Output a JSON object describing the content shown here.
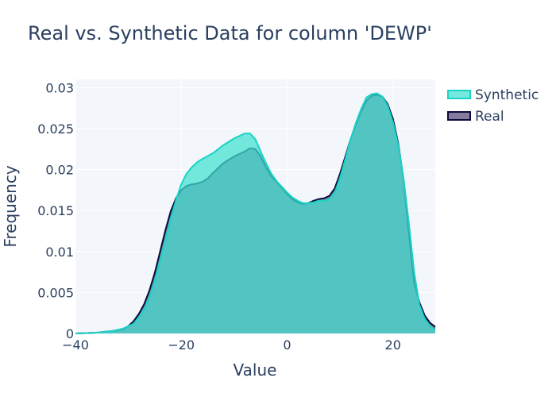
{
  "chart_data": {
    "type": "area",
    "title": "Real vs. Synthetic Data for column 'DEWP'",
    "xlabel": "Value",
    "ylabel": "Frequency",
    "xlim": [
      -40,
      28
    ],
    "ylim": [
      0,
      0.031
    ],
    "x_ticks": [
      {
        "value": -40,
        "label": "−40"
      },
      {
        "value": -20,
        "label": "−20"
      },
      {
        "value": 0,
        "label": "0"
      },
      {
        "value": 20,
        "label": "20"
      }
    ],
    "y_ticks": [
      {
        "value": 0,
        "label": "0"
      },
      {
        "value": 0.005,
        "label": "0.005"
      },
      {
        "value": 0.01,
        "label": "0.01"
      },
      {
        "value": 0.015,
        "label": "0.015"
      },
      {
        "value": 0.02,
        "label": "0.02"
      },
      {
        "value": 0.025,
        "label": "0.025"
      },
      {
        "value": 0.03,
        "label": "0.03"
      }
    ],
    "grid": true,
    "legend_position": "top-right",
    "series": [
      {
        "name": "Synthetic",
        "fill_color": "#40e0d0",
        "line_color": "#19d3c5",
        "points": [
          [
            -40,
            0
          ],
          [
            -36,
            0.0001
          ],
          [
            -33,
            0.0003
          ],
          [
            -31,
            0.0006
          ],
          [
            -29,
            0.0012
          ],
          [
            -28,
            0.002
          ],
          [
            -27,
            0.003
          ],
          [
            -26,
            0.0045
          ],
          [
            -25,
            0.0065
          ],
          [
            -24,
            0.009
          ],
          [
            -23,
            0.0115
          ],
          [
            -22,
            0.014
          ],
          [
            -21,
            0.0163
          ],
          [
            -20,
            0.0182
          ],
          [
            -19,
            0.0195
          ],
          [
            -18,
            0.0203
          ],
          [
            -17,
            0.0209
          ],
          [
            -16,
            0.0213
          ],
          [
            -14,
            0.022
          ],
          [
            -12,
            0.023
          ],
          [
            -10,
            0.0238
          ],
          [
            -8,
            0.0244
          ],
          [
            -7,
            0.0244
          ],
          [
            -6,
            0.0237
          ],
          [
            -5,
            0.0222
          ],
          [
            -4,
            0.0208
          ],
          [
            -3,
            0.0195
          ],
          [
            -2,
            0.0186
          ],
          [
            -1,
            0.0179
          ],
          [
            0,
            0.0172
          ],
          [
            1,
            0.0166
          ],
          [
            2,
            0.0162
          ],
          [
            3,
            0.0159
          ],
          [
            4,
            0.0159
          ],
          [
            5,
            0.016
          ],
          [
            6,
            0.0162
          ],
          [
            7,
            0.0162
          ],
          [
            8,
            0.0164
          ],
          [
            9,
            0.0172
          ],
          [
            10,
            0.019
          ],
          [
            11,
            0.0213
          ],
          [
            12,
            0.0237
          ],
          [
            13,
            0.0257
          ],
          [
            14,
            0.0274
          ],
          [
            15,
            0.0288
          ],
          [
            16,
            0.0292
          ],
          [
            17,
            0.0293
          ],
          [
            18,
            0.0289
          ],
          [
            19,
            0.0278
          ],
          [
            20,
            0.0258
          ],
          [
            21,
            0.023
          ],
          [
            22,
            0.019
          ],
          [
            23,
            0.0135
          ],
          [
            24,
            0.0075
          ],
          [
            25,
            0.0035
          ],
          [
            26,
            0.0018
          ],
          [
            27,
            0.0009
          ],
          [
            28,
            0.0004
          ]
        ]
      },
      {
        "name": "Real",
        "fill_color": "#55497a",
        "line_color": "#0b0b3b",
        "points": [
          [
            -40,
            0
          ],
          [
            -36,
            0.0001
          ],
          [
            -33,
            0.0003
          ],
          [
            -31,
            0.0005
          ],
          [
            -30,
            0.0009
          ],
          [
            -29,
            0.0015
          ],
          [
            -28,
            0.0024
          ],
          [
            -27,
            0.0036
          ],
          [
            -26,
            0.0053
          ],
          [
            -25,
            0.0074
          ],
          [
            -24,
            0.01
          ],
          [
            -23,
            0.0126
          ],
          [
            -22,
            0.0149
          ],
          [
            -21,
            0.0165
          ],
          [
            -20,
            0.0175
          ],
          [
            -19,
            0.018
          ],
          [
            -18,
            0.0182
          ],
          [
            -17,
            0.0183
          ],
          [
            -16,
            0.0185
          ],
          [
            -15,
            0.0189
          ],
          [
            -14,
            0.0196
          ],
          [
            -12,
            0.0208
          ],
          [
            -10,
            0.0216
          ],
          [
            -8,
            0.0222
          ],
          [
            -7,
            0.0226
          ],
          [
            -6,
            0.0225
          ],
          [
            -5,
            0.0216
          ],
          [
            -4,
            0.0203
          ],
          [
            -3,
            0.0192
          ],
          [
            -2,
            0.0185
          ],
          [
            -1,
            0.0178
          ],
          [
            0,
            0.017
          ],
          [
            1,
            0.0164
          ],
          [
            2,
            0.016
          ],
          [
            3,
            0.0158
          ],
          [
            4,
            0.0159
          ],
          [
            5,
            0.0162
          ],
          [
            6,
            0.0164
          ],
          [
            7,
            0.0165
          ],
          [
            8,
            0.0168
          ],
          [
            9,
            0.0177
          ],
          [
            10,
            0.0195
          ],
          [
            11,
            0.0216
          ],
          [
            12,
            0.0237
          ],
          [
            13,
            0.0255
          ],
          [
            14,
            0.0271
          ],
          [
            15,
            0.0284
          ],
          [
            16,
            0.029
          ],
          [
            17,
            0.0291
          ],
          [
            18,
            0.0289
          ],
          [
            19,
            0.028
          ],
          [
            20,
            0.0262
          ],
          [
            21,
            0.0232
          ],
          [
            22,
            0.0188
          ],
          [
            23,
            0.0123
          ],
          [
            24,
            0.0062
          ],
          [
            25,
            0.0038
          ],
          [
            26,
            0.0022
          ],
          [
            27,
            0.0013
          ],
          [
            28,
            0.0008
          ]
        ]
      }
    ]
  }
}
